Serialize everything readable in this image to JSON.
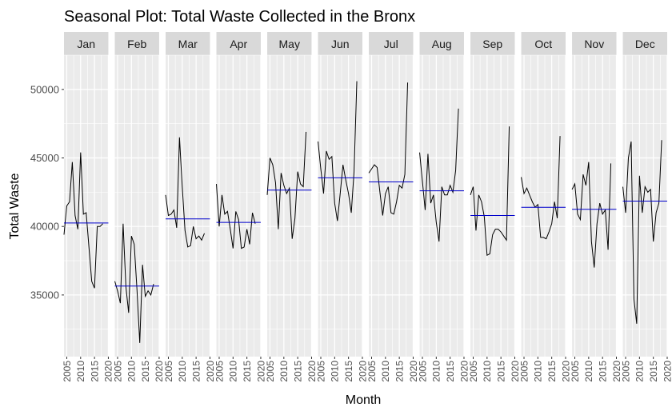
{
  "chart_data": {
    "type": "line",
    "title": "Seasonal Plot: Total Waste Collected in the Bronx",
    "xlabel": "Month",
    "ylabel": "Total Waste",
    "ylim": [
      30500,
      52500
    ],
    "yticks": [
      35000,
      40000,
      45000,
      50000
    ],
    "ytick_labels": [
      "35000",
      "40000",
      "45000",
      "50000"
    ],
    "year_range": [
      2004,
      2020
    ],
    "xticks": [
      2005,
      2010,
      2015,
      2020
    ],
    "xtick_labels": [
      "2005",
      "2010",
      "2015",
      "2020"
    ],
    "grid": true,
    "colors": {
      "line": "#000000",
      "mean_line": "#0000cc",
      "panel_background": "#ebebeb",
      "strip_background": "#d9d9d9",
      "grid": "#ffffff"
    },
    "panels": [
      {
        "label": "Jan",
        "mean": 40250,
        "x": [
          2004,
          2005,
          2006,
          2007,
          2008,
          2009,
          2010,
          2011,
          2012,
          2013,
          2014,
          2015,
          2016,
          2017,
          2018
        ],
        "y": [
          39400,
          41500,
          41800,
          44700,
          40800,
          39800,
          45400,
          40900,
          41000,
          38500,
          36000,
          35500,
          40000,
          40000,
          40200
        ]
      },
      {
        "label": "Feb",
        "mean": 35650,
        "x": [
          2004,
          2005,
          2006,
          2007,
          2008,
          2009,
          2010,
          2011,
          2012,
          2013,
          2014,
          2015,
          2016,
          2017,
          2018
        ],
        "y": [
          36000,
          35300,
          34400,
          40200,
          35600,
          33700,
          39300,
          38700,
          35400,
          31500,
          37200,
          34900,
          35300,
          35000,
          35800
        ]
      },
      {
        "label": "Mar",
        "mean": 40550,
        "x": [
          2004,
          2005,
          2006,
          2007,
          2008,
          2009,
          2010,
          2011,
          2012,
          2013,
          2014,
          2015,
          2016,
          2017,
          2018
        ],
        "y": [
          42300,
          40800,
          40900,
          41200,
          39900,
          46500,
          42900,
          39700,
          38500,
          38600,
          40000,
          39100,
          39300,
          39000,
          39500
        ]
      },
      {
        "label": "Apr",
        "mean": 40300,
        "x": [
          2004,
          2005,
          2006,
          2007,
          2008,
          2009,
          2010,
          2011,
          2012,
          2013,
          2014,
          2015,
          2016,
          2017,
          2018
        ],
        "y": [
          43100,
          40000,
          42300,
          40900,
          41100,
          39800,
          38400,
          41100,
          40500,
          38400,
          38500,
          39800,
          38700,
          41000,
          40200
        ]
      },
      {
        "label": "May",
        "mean": 42650,
        "x": [
          2004,
          2005,
          2006,
          2007,
          2008,
          2009,
          2010,
          2011,
          2012,
          2013,
          2014,
          2015,
          2016,
          2017,
          2018
        ],
        "y": [
          42300,
          45000,
          44500,
          43200,
          39800,
          43900,
          43000,
          42400,
          42800,
          39100,
          40600,
          44000,
          43100,
          42900,
          46900
        ]
      },
      {
        "label": "Jun",
        "mean": 43550,
        "x": [
          2004,
          2005,
          2006,
          2007,
          2008,
          2009,
          2010,
          2011,
          2012,
          2013,
          2014,
          2015,
          2016,
          2017,
          2018
        ],
        "y": [
          46200,
          44200,
          42400,
          45500,
          44900,
          45100,
          41700,
          40400,
          42400,
          44500,
          43400,
          42400,
          41000,
          44000,
          50600
        ]
      },
      {
        "label": "Jul",
        "mean": 43250,
        "x": [
          2004,
          2005,
          2006,
          2007,
          2008,
          2009,
          2010,
          2011,
          2012,
          2013,
          2014,
          2015,
          2016,
          2017,
          2018
        ],
        "y": [
          43900,
          44200,
          44500,
          44300,
          42500,
          40800,
          42400,
          42900,
          41000,
          40900,
          41800,
          43000,
          42800,
          43800,
          50500
        ]
      },
      {
        "label": "Aug",
        "mean": 42600,
        "x": [
          2004,
          2005,
          2006,
          2007,
          2008,
          2009,
          2010,
          2011,
          2012,
          2013,
          2014,
          2015,
          2016,
          2017,
          2018
        ],
        "y": [
          45400,
          43300,
          41200,
          45300,
          41700,
          42300,
          40300,
          38900,
          42900,
          42300,
          42300,
          43000,
          42500,
          44100,
          48600
        ]
      },
      {
        "label": "Sep",
        "mean": 40800,
        "x": [
          2004,
          2005,
          2006,
          2007,
          2008,
          2009,
          2010,
          2011,
          2012,
          2013,
          2014,
          2015,
          2016,
          2017,
          2018
        ],
        "y": [
          42300,
          42900,
          39700,
          42300,
          41800,
          40700,
          37900,
          38000,
          39400,
          39800,
          39800,
          39600,
          39300,
          39000,
          47300
        ]
      },
      {
        "label": "Oct",
        "mean": 41400,
        "x": [
          2004,
          2005,
          2006,
          2007,
          2008,
          2009,
          2010,
          2011,
          2012,
          2013,
          2014,
          2015,
          2016,
          2017,
          2018
        ],
        "y": [
          43600,
          42400,
          42800,
          42300,
          41800,
          41400,
          41600,
          39200,
          39200,
          39100,
          39600,
          40200,
          41800,
          40600,
          46600
        ]
      },
      {
        "label": "Nov",
        "mean": 41250,
        "x": [
          2004,
          2005,
          2006,
          2007,
          2008,
          2009,
          2010,
          2011,
          2012,
          2013,
          2014,
          2015,
          2016,
          2017,
          2018
        ],
        "y": [
          42700,
          43100,
          40900,
          40500,
          43800,
          43000,
          44700,
          38900,
          37000,
          40200,
          41700,
          40900,
          41200,
          38300,
          44600
        ]
      },
      {
        "label": "Dec",
        "mean": 41850,
        "x": [
          2004,
          2005,
          2006,
          2007,
          2008,
          2009,
          2010,
          2011,
          2012,
          2013,
          2014,
          2015,
          2016,
          2017,
          2018
        ],
        "y": [
          42900,
          41000,
          45000,
          46200,
          34700,
          32900,
          43700,
          41000,
          42900,
          42500,
          42700,
          38900,
          41000,
          41700,
          46300
        ]
      }
    ]
  }
}
